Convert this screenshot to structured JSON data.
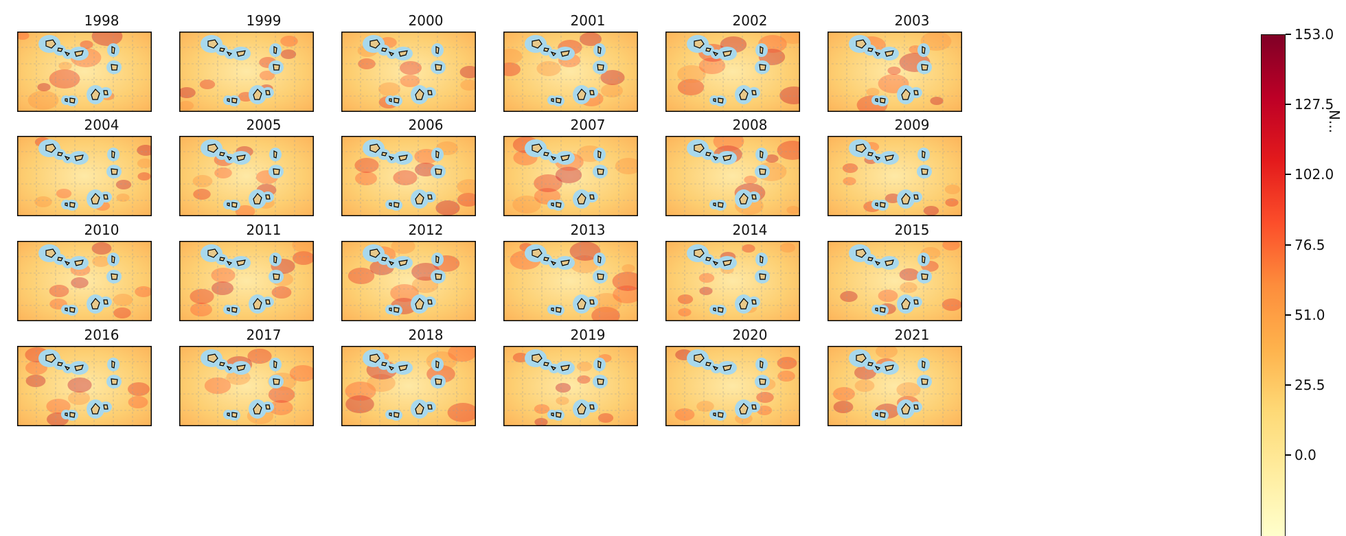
{
  "chart_data": {
    "type": "heatmap",
    "panels": [
      {
        "title": "1998"
      },
      {
        "title": "1999"
      },
      {
        "title": "2000"
      },
      {
        "title": "2001"
      },
      {
        "title": "2002"
      },
      {
        "title": "2003"
      },
      {
        "title": "2004"
      },
      {
        "title": "2005"
      },
      {
        "title": "2006"
      },
      {
        "title": "2007"
      },
      {
        "title": "2008"
      },
      {
        "title": "2009"
      },
      {
        "title": "2010"
      },
      {
        "title": "2011"
      },
      {
        "title": "2012"
      },
      {
        "title": "2013"
      },
      {
        "title": "2014"
      },
      {
        "title": "2015"
      },
      {
        "title": "2016"
      },
      {
        "title": "2017"
      },
      {
        "title": "2018"
      },
      {
        "title": "2019"
      },
      {
        "title": "2020"
      },
      {
        "title": "2021"
      }
    ],
    "colorbar": {
      "range": [
        0.0,
        153.0
      ],
      "ticks": [
        "153.0",
        "127.5",
        "102.0",
        "76.5",
        "51.0",
        "25.5",
        "0.0"
      ],
      "label": "N...",
      "colormap": "YlOrRd"
    },
    "land_color": "#e8c98a",
    "coastal_buffer_color": "#a8d8ec",
    "grid": true
  }
}
